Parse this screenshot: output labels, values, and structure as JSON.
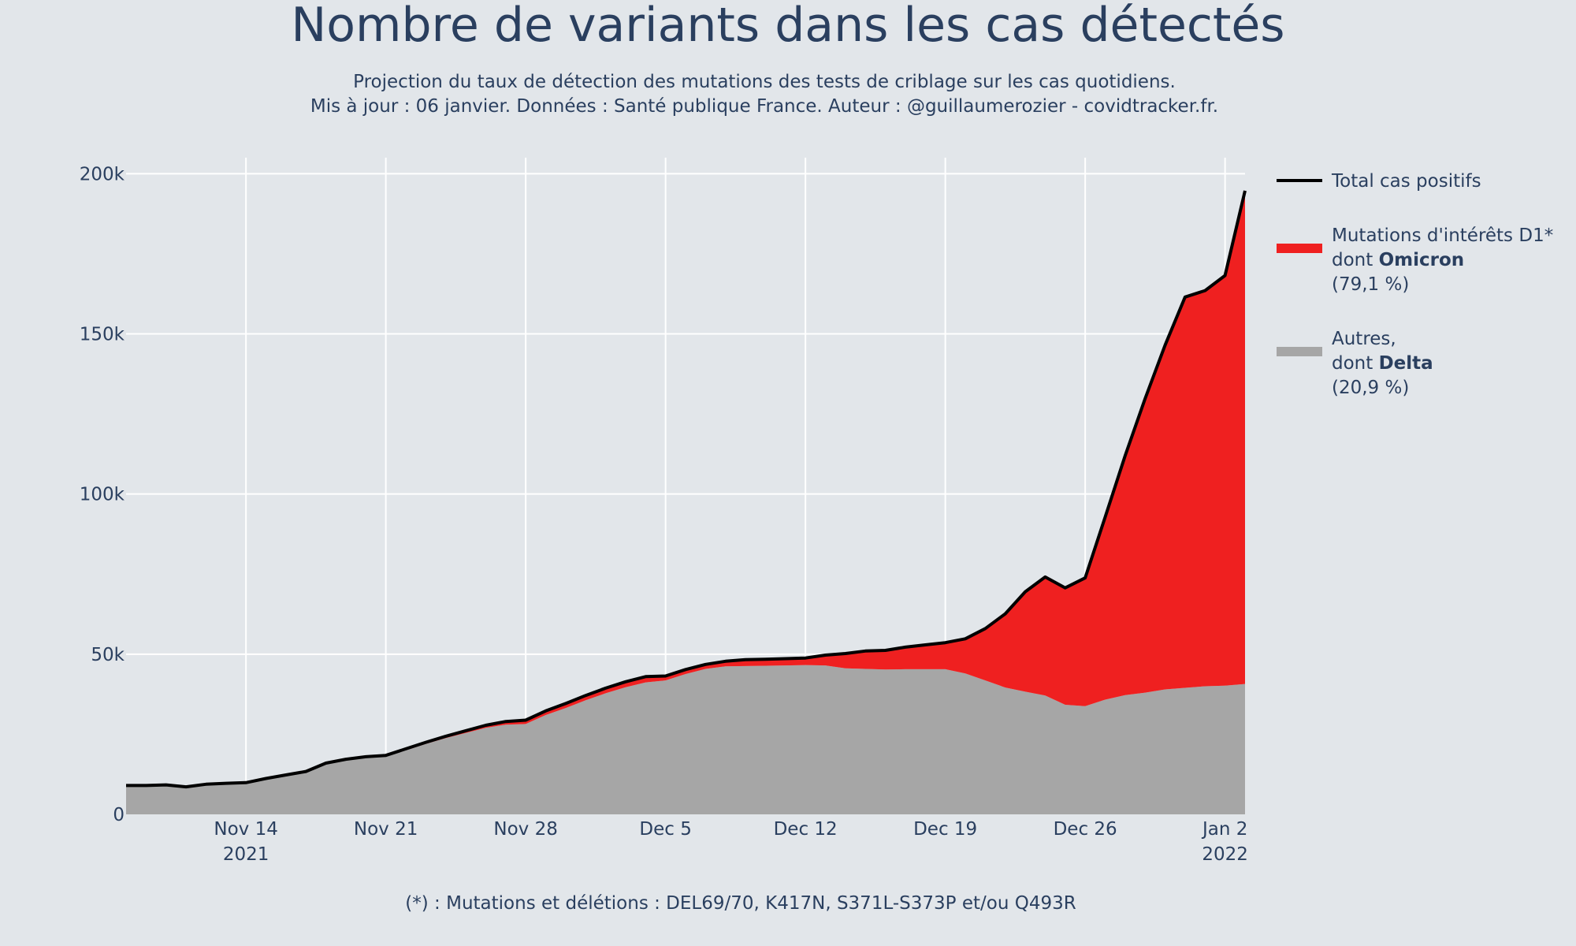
{
  "chart_data": {
    "type": "area",
    "title": "Nombre de variants dans les cas détectés",
    "subtitle_lines": [
      "Projection du taux de détection des mutations des tests de criblage sur les cas quotidiens.",
      "Mis à jour : 06 janvier. Données : Santé publique France. Auteur : @guillaumerozier - covidtracker.fr."
    ],
    "footnote": "(*) : Mutations et délétions : DEL69/70, K417N, S371L-S373P et/ou Q493R",
    "x_ticks": [
      {
        "date": "2021-11-14",
        "label": "Nov 14",
        "label2": "2021"
      },
      {
        "date": "2021-11-21",
        "label": "Nov 21",
        "label2": ""
      },
      {
        "date": "2021-11-28",
        "label": "Nov 28",
        "label2": ""
      },
      {
        "date": "2021-12-05",
        "label": "Dec 5",
        "label2": ""
      },
      {
        "date": "2021-12-12",
        "label": "Dec 12",
        "label2": ""
      },
      {
        "date": "2021-12-19",
        "label": "Dec 19",
        "label2": ""
      },
      {
        "date": "2021-12-26",
        "label": "Dec 26",
        "label2": ""
      },
      {
        "date": "2022-01-02",
        "label": "Jan 2",
        "label2": "2022"
      }
    ],
    "y_ticks": [
      {
        "value": 0,
        "label": "0"
      },
      {
        "value": 50000,
        "label": "50k"
      },
      {
        "value": 100000,
        "label": "100k"
      },
      {
        "value": 150000,
        "label": "150k"
      },
      {
        "value": 200000,
        "label": "200k"
      }
    ],
    "xlim": [
      "2021-11-08",
      "2022-01-03"
    ],
    "ylim": [
      0,
      205000
    ],
    "grid": true,
    "legend_position": "right",
    "x": [
      "2021-11-08",
      "2021-11-09",
      "2021-11-10",
      "2021-11-11",
      "2021-11-12",
      "2021-11-13",
      "2021-11-14",
      "2021-11-15",
      "2021-11-16",
      "2021-11-17",
      "2021-11-18",
      "2021-11-19",
      "2021-11-20",
      "2021-11-21",
      "2021-11-22",
      "2021-11-23",
      "2021-11-24",
      "2021-11-25",
      "2021-11-26",
      "2021-11-27",
      "2021-11-28",
      "2021-11-29",
      "2021-11-30",
      "2021-12-01",
      "2021-12-02",
      "2021-12-03",
      "2021-12-04",
      "2021-12-05",
      "2021-12-06",
      "2021-12-07",
      "2021-12-08",
      "2021-12-09",
      "2021-12-10",
      "2021-12-11",
      "2021-12-12",
      "2021-12-13",
      "2021-12-14",
      "2021-12-15",
      "2021-12-16",
      "2021-12-17",
      "2021-12-18",
      "2021-12-19",
      "2021-12-20",
      "2021-12-21",
      "2021-12-22",
      "2021-12-23",
      "2021-12-24",
      "2021-12-25",
      "2021-12-26",
      "2021-12-27",
      "2021-12-28",
      "2021-12-29",
      "2021-12-30",
      "2021-12-31",
      "2022-01-01",
      "2022-01-02",
      "2022-01-03"
    ],
    "series": [
      {
        "name": "Autres,",
        "legend_lines": [
          "Autres,",
          "dont ",
          "Delta",
          " (20,9 %)"
        ],
        "color": "#a6a6a6",
        "values": [
          9000,
          9000,
          9200,
          8600,
          9400,
          9700,
          9900,
          11200,
          12300,
          13400,
          16000,
          17000,
          17700,
          18000,
          20000,
          22000,
          23800,
          25400,
          27000,
          28000,
          28200,
          31000,
          33200,
          35600,
          37800,
          39700,
          41200,
          41800,
          43800,
          45400,
          46200,
          46300,
          46400,
          46500,
          46600,
          46500,
          45600,
          45400,
          45200,
          45300,
          45300,
          45300,
          44000,
          41800,
          39600,
          38300,
          37100,
          34200,
          33800,
          35800,
          37200,
          38000,
          39000,
          39500,
          40000,
          40200,
          40700
        ]
      },
      {
        "name": "Mutations d'intérêts D1*",
        "legend_lines": [
          "Mutations d'intérêts D1*",
          "dont ",
          "Omicron",
          " (79,1 %)"
        ],
        "color": "#ef2020",
        "values": [
          0,
          0,
          0,
          0,
          0,
          0,
          0,
          0,
          0,
          0,
          0,
          200,
          300,
          400,
          450,
          500,
          600,
          700,
          800,
          1000,
          1200,
          1300,
          1400,
          1500,
          1600,
          1700,
          1800,
          1400,
          1400,
          1400,
          1600,
          2000,
          2000,
          2100,
          2200,
          3200,
          4600,
          5600,
          6000,
          6900,
          7600,
          8300,
          10800,
          16200,
          23000,
          31200,
          37000,
          36500,
          40000,
          57000,
          74800,
          91800,
          107500,
          122000,
          123500,
          128000,
          154000
        ]
      },
      {
        "name": "Total cas positifs",
        "color": "#000000",
        "values": [
          9000,
          9000,
          9200,
          8600,
          9400,
          9700,
          9900,
          11200,
          12300,
          13400,
          16000,
          17200,
          18000,
          18400,
          20450,
          22500,
          24400,
          26100,
          27800,
          29000,
          29400,
          32300,
          34600,
          37100,
          39400,
          41400,
          43000,
          43200,
          45200,
          46800,
          47800,
          48300,
          48400,
          48600,
          48800,
          49700,
          50200,
          51000,
          51200,
          52200,
          52900,
          53600,
          54800,
          58000,
          62600,
          69500,
          74100,
          70700,
          73800,
          92800,
          112000,
          129800,
          146500,
          161500,
          163500,
          168200,
          194700
        ]
      }
    ]
  }
}
